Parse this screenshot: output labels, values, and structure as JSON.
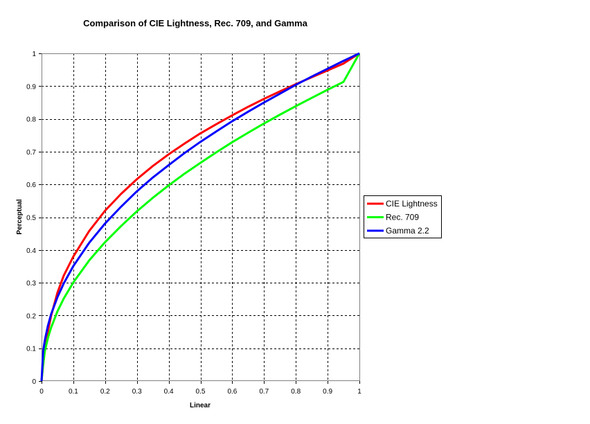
{
  "chart_data": {
    "type": "line",
    "title": "Comparison of CIE Lightness, Rec. 709, and Gamma",
    "xlabel": "Linear",
    "ylabel": "Perceptual",
    "xlim": [
      0,
      1
    ],
    "ylim": [
      0,
      1
    ],
    "grid": true,
    "legend_position": "right",
    "x_ticks": [
      "0",
      "0.1",
      "0.2",
      "0.3",
      "0.4",
      "0.5",
      "0.6",
      "0.7",
      "0.8",
      "0.9",
      "1"
    ],
    "y_ticks": [
      "0",
      "0.1",
      "0.2",
      "0.3",
      "0.4",
      "0.5",
      "0.6",
      "0.7",
      "0.8",
      "0.9",
      "1"
    ],
    "x": [
      0,
      0.005,
      0.01,
      0.02,
      0.03,
      0.05,
      0.07,
      0.1,
      0.15,
      0.2,
      0.25,
      0.3,
      0.35,
      0.4,
      0.45,
      0.5,
      0.55,
      0.6,
      0.65,
      0.7,
      0.75,
      0.8,
      0.85,
      0.9,
      0.95,
      1
    ],
    "series": [
      {
        "name": "CIE Lightness",
        "color": "#ff0000",
        "values": [
          0,
          0.05,
          0.09,
          0.152,
          0.199,
          0.27,
          0.322,
          0.38,
          0.458,
          0.52,
          0.571,
          0.616,
          0.656,
          0.692,
          0.725,
          0.756,
          0.784,
          0.811,
          0.837,
          0.861,
          0.884,
          0.906,
          0.927,
          0.948,
          0.969,
          1
        ]
      },
      {
        "name": "Rec. 709",
        "color": "#00ff00",
        "values": [
          0,
          0.05,
          0.09,
          0.131,
          0.163,
          0.213,
          0.252,
          0.301,
          0.368,
          0.424,
          0.473,
          0.518,
          0.559,
          0.597,
          0.633,
          0.666,
          0.698,
          0.729,
          0.758,
          0.786,
          0.813,
          0.839,
          0.864,
          0.889,
          0.913,
          1
        ]
      },
      {
        "name": "Gamma 2.2",
        "color": "#0000ff",
        "values": [
          0,
          0.09,
          0.123,
          0.169,
          0.204,
          0.256,
          0.298,
          0.351,
          0.422,
          0.481,
          0.532,
          0.579,
          0.621,
          0.659,
          0.696,
          0.73,
          0.762,
          0.793,
          0.822,
          0.85,
          0.877,
          0.904,
          0.929,
          0.953,
          0.977,
          1
        ]
      }
    ]
  }
}
